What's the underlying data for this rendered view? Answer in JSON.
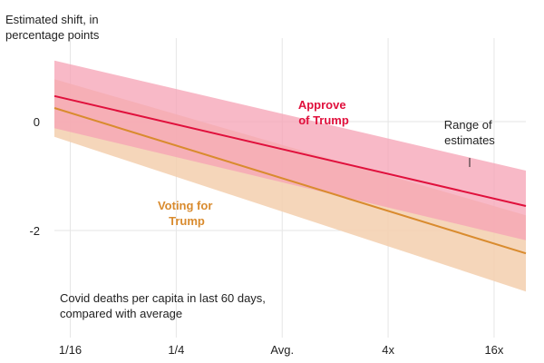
{
  "chart_data": {
    "type": "line",
    "title": "",
    "ylabel": [
      "Estimated shift, in",
      "percentage points"
    ],
    "xlabel": [
      "Covid deaths per capita in last 60 days,",
      "compared with average"
    ],
    "x_ticks": [
      {
        "label": "1/16",
        "value": -4
      },
      {
        "label": "1/4",
        "value": -2
      },
      {
        "label": "Avg.",
        "value": 0
      },
      {
        "label": "4x",
        "value": 2
      },
      {
        "label": "16x",
        "value": 4
      }
    ],
    "y_ticks": [
      {
        "label": "0",
        "value": 0
      },
      {
        "label": "-2",
        "value": -2
      }
    ],
    "xlim": [
      -4.3,
      4.6
    ],
    "ylim": [
      -3.8,
      1.6
    ],
    "grid": true,
    "annotation": [
      "Range of",
      "estimates"
    ],
    "series": [
      {
        "name": [
          "Voting for",
          "Trump"
        ],
        "color": "#d98b2e",
        "band_color": "#f3cfae",
        "x": [
          -4.3,
          4.6
        ],
        "y": [
          0.25,
          -2.42
        ],
        "lower": [
          -0.28,
          -3.12
        ],
        "upper": [
          0.78,
          -1.72
        ]
      },
      {
        "name": [
          "Approve",
          "of Trump"
        ],
        "color": "#e0103c",
        "band_color": "#f6a2b4",
        "x": [
          -4.3,
          4.6
        ],
        "y": [
          0.47,
          -1.55
        ],
        "lower": [
          -0.12,
          -2.18
        ],
        "upper": [
          1.12,
          -0.9
        ]
      }
    ]
  }
}
